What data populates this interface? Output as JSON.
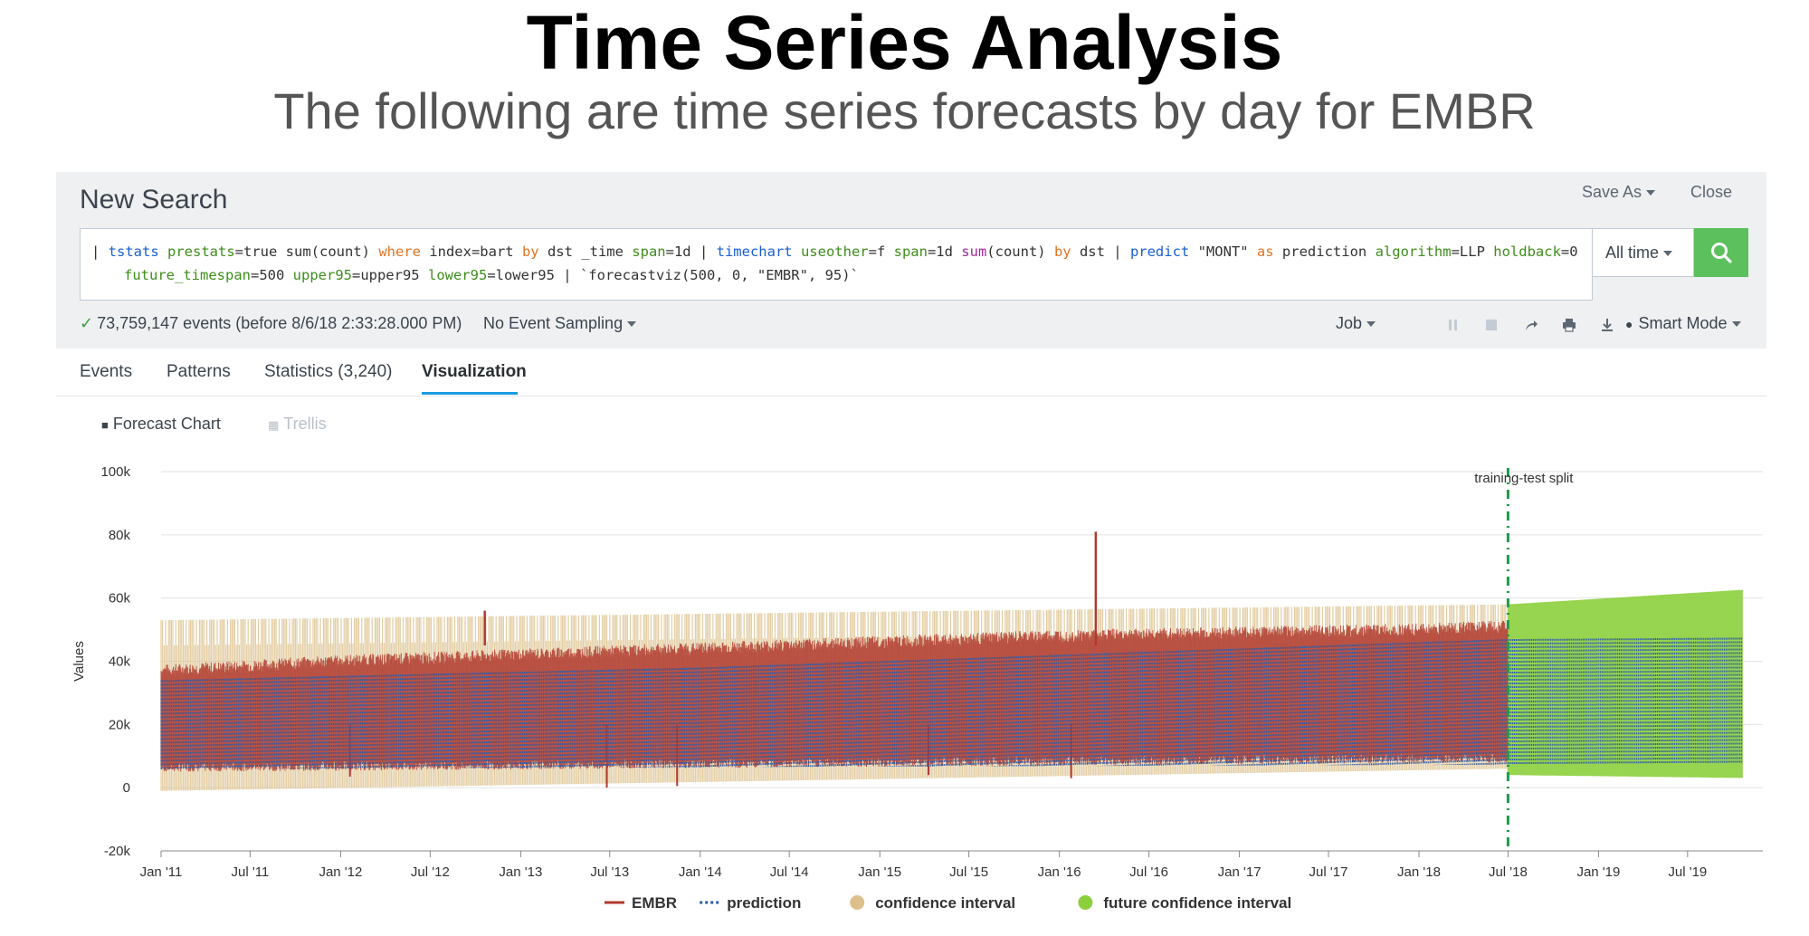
{
  "slide": {
    "title": "Time Series Analysis",
    "subtitle": "The following are time series forecasts by day for EMBR"
  },
  "search": {
    "title": "New Search",
    "save_as": "Save As",
    "close": "Close",
    "query_line1": [
      {
        "t": "| ",
        "c": ""
      },
      {
        "t": "tstats",
        "c": "kw-cmd"
      },
      {
        "t": " ",
        "c": ""
      },
      {
        "t": "prestats",
        "c": "kw-arg"
      },
      {
        "t": "=true sum(count) ",
        "c": ""
      },
      {
        "t": "where",
        "c": "kw-op"
      },
      {
        "t": " index=bart ",
        "c": ""
      },
      {
        "t": "by",
        "c": "kw-op"
      },
      {
        "t": " dst _time ",
        "c": ""
      },
      {
        "t": "span",
        "c": "kw-arg"
      },
      {
        "t": "=1d | ",
        "c": ""
      },
      {
        "t": "timechart",
        "c": "kw-cmd"
      },
      {
        "t": " ",
        "c": ""
      },
      {
        "t": "useother",
        "c": "kw-arg"
      },
      {
        "t": "=f ",
        "c": ""
      },
      {
        "t": "span",
        "c": "kw-arg"
      },
      {
        "t": "=1d ",
        "c": ""
      },
      {
        "t": "sum",
        "c": "kw-fn"
      },
      {
        "t": "(count) ",
        "c": ""
      },
      {
        "t": "by",
        "c": "kw-op"
      },
      {
        "t": " dst | ",
        "c": ""
      },
      {
        "t": "predict",
        "c": "kw-cmd"
      },
      {
        "t": " \"MONT\" ",
        "c": ""
      },
      {
        "t": "as",
        "c": "kw-op"
      },
      {
        "t": " prediction ",
        "c": ""
      },
      {
        "t": "algorithm",
        "c": "kw-arg"
      },
      {
        "t": "=LLP ",
        "c": ""
      },
      {
        "t": "holdback",
        "c": "kw-arg"
      },
      {
        "t": "=0",
        "c": ""
      }
    ],
    "query_line2": [
      {
        "t": "future_timespan",
        "c": "kw-arg"
      },
      {
        "t": "=500 ",
        "c": ""
      },
      {
        "t": "upper95",
        "c": "kw-arg"
      },
      {
        "t": "=upper95 ",
        "c": ""
      },
      {
        "t": "lower95",
        "c": "kw-arg"
      },
      {
        "t": "=lower95 | `forecastviz(500, 0, \"EMBR\", 95)`",
        "c": ""
      }
    ],
    "time_range": "All time",
    "events_status": "73,759,147 events (before 8/6/18 2:33:28.000 PM)",
    "event_sampling": "No Event Sampling",
    "job": "Job",
    "smart_mode": "Smart Mode",
    "toolbar_icons": [
      "pause-icon",
      "stop-icon",
      "share-icon",
      "print-icon",
      "export-icon"
    ]
  },
  "tabs": [
    {
      "label": "Events",
      "active": false
    },
    {
      "label": "Patterns",
      "active": false
    },
    {
      "label": "Statistics (3,240)",
      "active": false
    },
    {
      "label": "Visualization",
      "active": true
    }
  ],
  "viz": {
    "forecast_chart": "Forecast Chart",
    "trellis": "Trellis"
  },
  "chart_data": {
    "type": "line",
    "title": "",
    "xlabel": "",
    "ylabel": "Values",
    "ylim": [
      -20000,
      100000
    ],
    "yticks": [
      100000,
      80000,
      60000,
      40000,
      20000,
      0,
      -20000
    ],
    "ytick_labels": [
      "100k",
      "80k",
      "60k",
      "40k",
      "20k",
      "0",
      "-20k"
    ],
    "xlim": [
      "2011-01-01",
      "2019-12-01"
    ],
    "xticks": [
      {
        "date": "2011-01-01",
        "label": "Jan '11"
      },
      {
        "date": "2011-07-01",
        "label": "Jul '11"
      },
      {
        "date": "2012-01-01",
        "label": "Jan '12"
      },
      {
        "date": "2012-07-01",
        "label": "Jul '12"
      },
      {
        "date": "2013-01-01",
        "label": "Jan '13"
      },
      {
        "date": "2013-07-01",
        "label": "Jul '13"
      },
      {
        "date": "2014-01-01",
        "label": "Jan '14"
      },
      {
        "date": "2014-07-01",
        "label": "Jul '14"
      },
      {
        "date": "2015-01-01",
        "label": "Jan '15"
      },
      {
        "date": "2015-07-01",
        "label": "Jul '15"
      },
      {
        "date": "2016-01-01",
        "label": "Jan '16"
      },
      {
        "date": "2016-07-01",
        "label": "Jul '16"
      },
      {
        "date": "2017-01-01",
        "label": "Jan '17"
      },
      {
        "date": "2017-07-01",
        "label": "Jul '17"
      },
      {
        "date": "2018-01-01",
        "label": "Jan '18"
      },
      {
        "date": "2018-07-01",
        "label": "Jul '18"
      },
      {
        "date": "2019-01-01",
        "label": "Jan '19"
      },
      {
        "date": "2019-07-01",
        "label": "Jul '19"
      }
    ],
    "split": {
      "date": "2018-07-01",
      "label": "training-test split",
      "color": "#1a9e4a"
    },
    "grid": true,
    "legend_position": "bottom",
    "series": [
      {
        "name": "EMBR",
        "color": "#b03a2e",
        "style": "solid",
        "weekday_high": [
          [
            "2011-01-01",
            35000
          ],
          [
            "2012-01-01",
            38000
          ],
          [
            "2013-01-01",
            40000
          ],
          [
            "2014-01-01",
            42000
          ],
          [
            "2015-01-01",
            44000
          ],
          [
            "2016-01-01",
            46000
          ],
          [
            "2017-01-01",
            47000
          ],
          [
            "2018-01-01",
            48000
          ],
          [
            "2018-07-01",
            49000
          ]
        ],
        "weekend_low": [
          [
            "2011-01-01",
            5000
          ],
          [
            "2018-07-01",
            8000
          ]
        ],
        "spikes": [
          [
            "2012-10-20",
            56000
          ],
          [
            "2016-03-15",
            81000
          ]
        ],
        "dips": [
          [
            "2013-06-25",
            0
          ],
          [
            "2013-11-15",
            500
          ],
          [
            "2012-01-20",
            3500
          ],
          [
            "2015-04-10",
            4000
          ],
          [
            "2016-01-25",
            3000
          ]
        ]
      },
      {
        "name": "prediction",
        "color": "#2a5aa8",
        "style": "dotted",
        "weekday_high": [
          [
            "2011-01-01",
            34000
          ],
          [
            "2014-01-01",
            38000
          ],
          [
            "2018-07-01",
            47000
          ],
          [
            "2019-12-01",
            47500
          ]
        ],
        "weekend_low": [
          [
            "2011-01-01",
            6000
          ],
          [
            "2019-12-01",
            7500
          ]
        ]
      },
      {
        "name": "confidence interval",
        "color": "#dcc08c",
        "upper": [
          [
            "2011-01-01",
            53000
          ],
          [
            "2018-07-01",
            58000
          ]
        ],
        "lower": [
          [
            "2011-01-01",
            -1000
          ],
          [
            "2018-07-01",
            6000
          ]
        ]
      },
      {
        "name": "future confidence interval",
        "color": "#8ccf3c",
        "upper": [
          [
            "2018-07-01",
            58000
          ],
          [
            "2019-12-01",
            63000
          ]
        ],
        "lower": [
          [
            "2018-07-01",
            4000
          ],
          [
            "2019-12-01",
            3000
          ]
        ]
      }
    ]
  }
}
